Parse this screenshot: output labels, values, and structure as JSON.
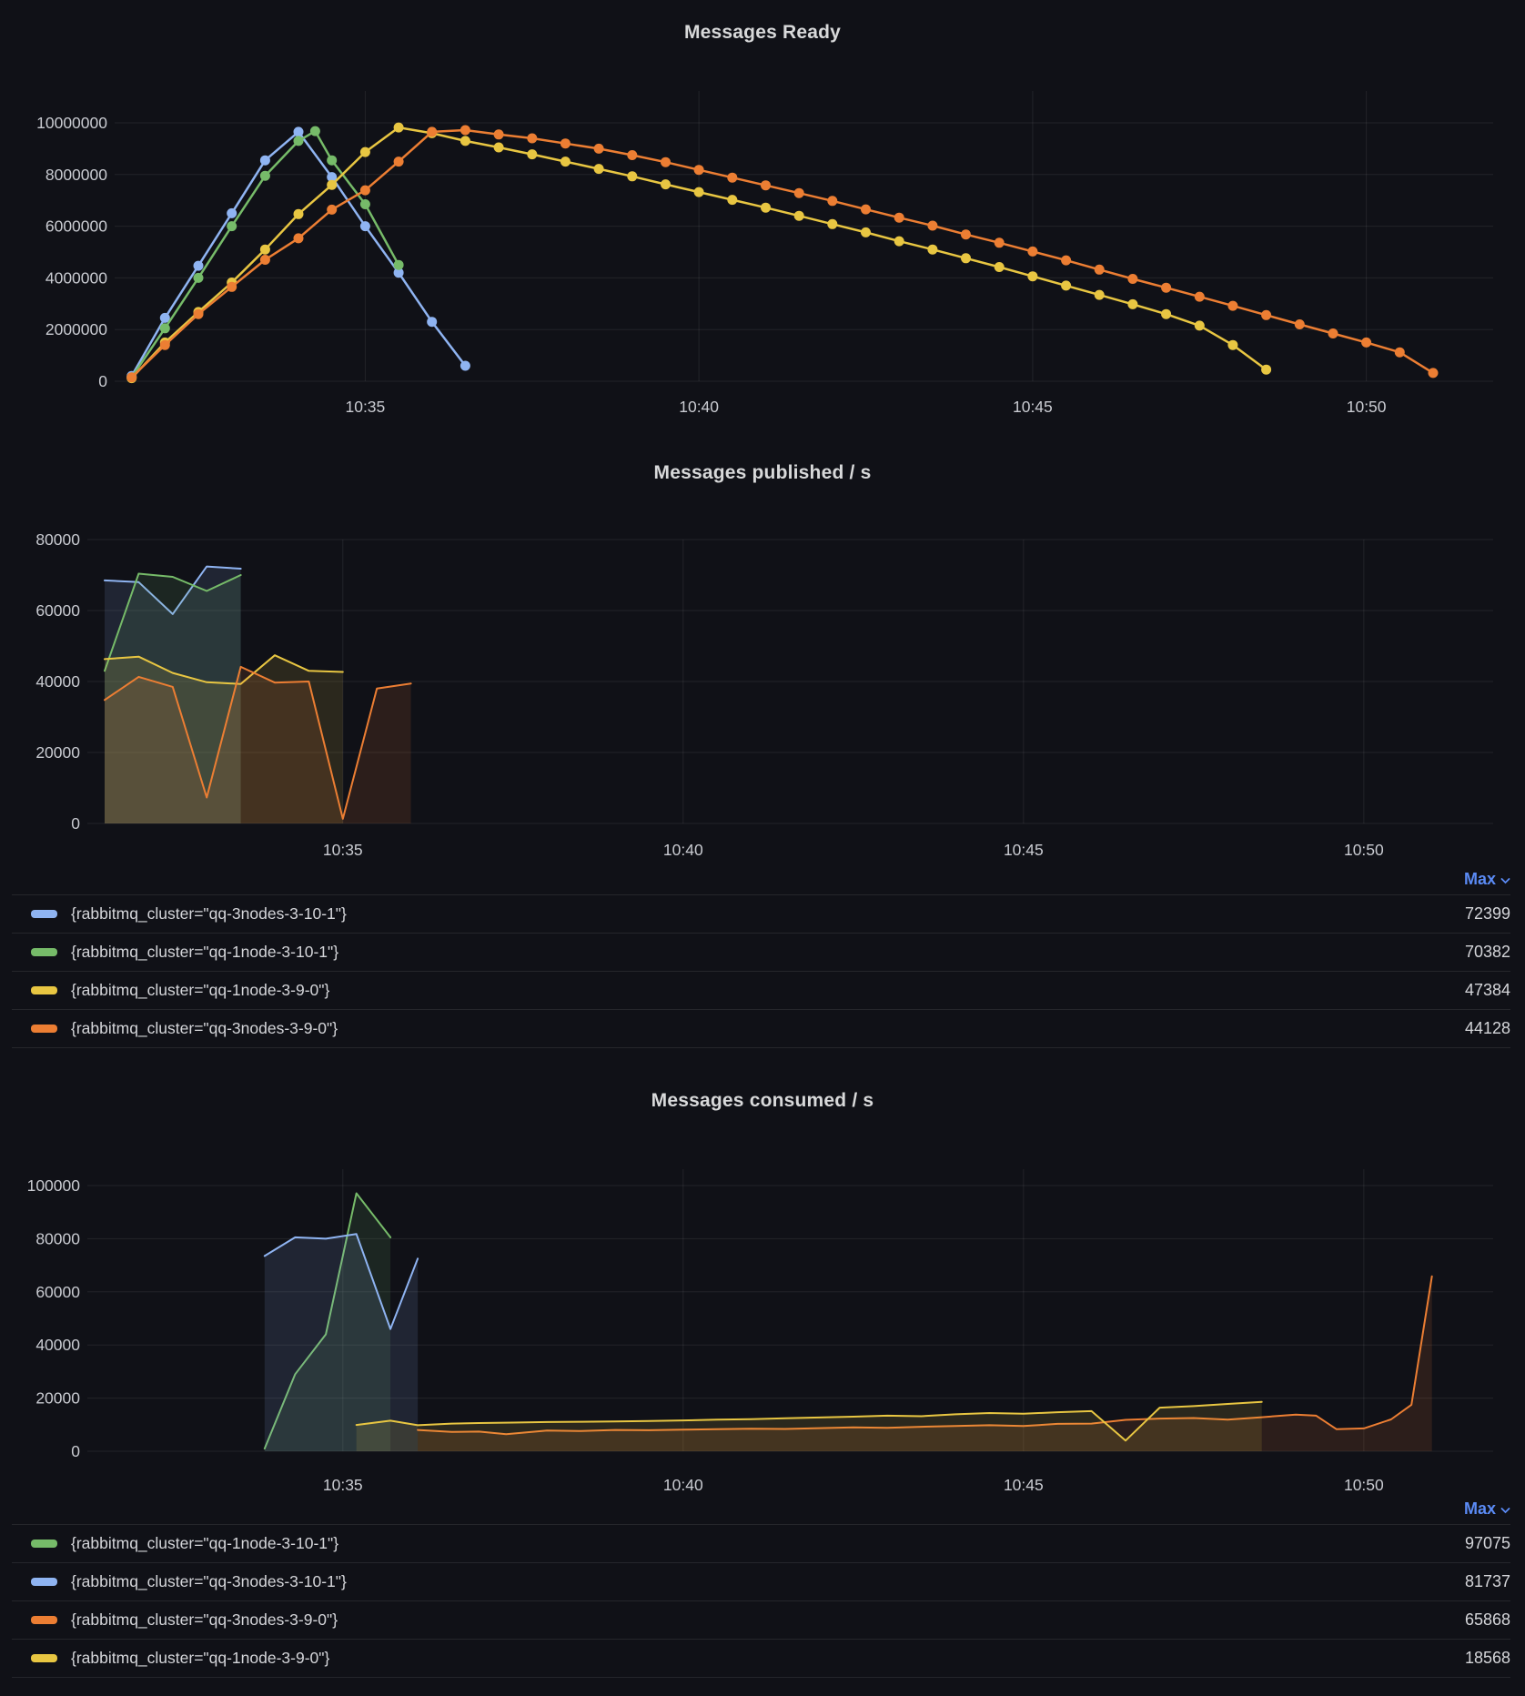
{
  "colors": {
    "blue": "#8FB4F2",
    "green": "#76BB69",
    "yellow": "#E8C642",
    "orange": "#EC7E33"
  },
  "legends": {
    "published": {
      "sort_label": "Max",
      "rows": [
        {
          "color": "blue",
          "label": "{rabbitmq_cluster=\"qq-3nodes-3-10-1\"}",
          "max": "72399"
        },
        {
          "color": "green",
          "label": "{rabbitmq_cluster=\"qq-1node-3-10-1\"}",
          "max": "70382"
        },
        {
          "color": "yellow",
          "label": "{rabbitmq_cluster=\"qq-1node-3-9-0\"}",
          "max": "47384"
        },
        {
          "color": "orange",
          "label": "{rabbitmq_cluster=\"qq-3nodes-3-9-0\"}",
          "max": "44128"
        }
      ]
    },
    "consumed": {
      "sort_label": "Max",
      "rows": [
        {
          "color": "green",
          "label": "{rabbitmq_cluster=\"qq-1node-3-10-1\"}",
          "max": "97075"
        },
        {
          "color": "blue",
          "label": "{rabbitmq_cluster=\"qq-3nodes-3-10-1\"}",
          "max": "81737"
        },
        {
          "color": "orange",
          "label": "{rabbitmq_cluster=\"qq-3nodes-3-9-0\"}",
          "max": "65868"
        },
        {
          "color": "yellow",
          "label": "{rabbitmq_cluster=\"qq-1node-3-9-0\"}",
          "max": "18568"
        }
      ]
    }
  },
  "chart_data": [
    {
      "type": "line",
      "title": "Messages Ready",
      "grid": true,
      "legend_position": "none",
      "marker": "circle",
      "x_axis": {
        "unit": "time (minutes after 10:30)",
        "tick_minutes": [
          5,
          10,
          15,
          20
        ],
        "tick_labels": [
          "10:35",
          "10:40",
          "10:45",
          "10:50"
        ],
        "domain_minutes": [
          1.3,
          21.9
        ]
      },
      "ylim": [
        0,
        10000000
      ],
      "yticks": [
        0,
        2000000,
        4000000,
        6000000,
        8000000,
        10000000
      ],
      "series": [
        {
          "name": "{rabbitmq_cluster=\"qq-3nodes-3-10-1\"}",
          "color": "blue",
          "values": [
            [
              1.5,
              200000
            ],
            [
              2,
              2450000
            ],
            [
              2.5,
              4470000
            ],
            [
              3,
              6500000
            ],
            [
              3.5,
              8550000
            ],
            [
              4,
              9650000
            ],
            [
              4.5,
              7900000
            ],
            [
              5,
              6000000
            ],
            [
              5.5,
              4200000
            ],
            [
              6,
              2300000
            ],
            [
              6.5,
              600000
            ]
          ]
        },
        {
          "name": "{rabbitmq_cluster=\"qq-1node-3-10-1\"}",
          "color": "green",
          "values": [
            [
              1.5,
              150000
            ],
            [
              2,
              2050000
            ],
            [
              2.5,
              4000000
            ],
            [
              3,
              6000000
            ],
            [
              3.5,
              7950000
            ],
            [
              4,
              9300000
            ],
            [
              4.25,
              9680000
            ],
            [
              4.5,
              8550000
            ],
            [
              5,
              6850000
            ],
            [
              5.5,
              4500000
            ]
          ]
        },
        {
          "name": "{rabbitmq_cluster=\"qq-1node-3-9-0\"}",
          "color": "yellow",
          "values": [
            [
              1.5,
              120000
            ],
            [
              2,
              1500000
            ],
            [
              2.5,
              2680000
            ],
            [
              3,
              3820000
            ],
            [
              3.5,
              5100000
            ],
            [
              4,
              6470000
            ],
            [
              4.5,
              7600000
            ],
            [
              5,
              8870000
            ],
            [
              5.5,
              9820000
            ],
            [
              6,
              9600000
            ],
            [
              6.5,
              9300000
            ],
            [
              7,
              9050000
            ],
            [
              7.5,
              8780000
            ],
            [
              8,
              8500000
            ],
            [
              8.5,
              8220000
            ],
            [
              9,
              7930000
            ],
            [
              9.5,
              7620000
            ],
            [
              10,
              7320000
            ],
            [
              10.5,
              7020000
            ],
            [
              11,
              6720000
            ],
            [
              11.5,
              6400000
            ],
            [
              12,
              6080000
            ],
            [
              12.5,
              5760000
            ],
            [
              13,
              5420000
            ],
            [
              13.5,
              5100000
            ],
            [
              14,
              4760000
            ],
            [
              14.5,
              4420000
            ],
            [
              15,
              4060000
            ],
            [
              15.5,
              3700000
            ],
            [
              16,
              3340000
            ],
            [
              16.5,
              2980000
            ],
            [
              17,
              2600000
            ],
            [
              17.5,
              2150000
            ],
            [
              18,
              1400000
            ],
            [
              18.5,
              450000
            ]
          ]
        },
        {
          "name": "{rabbitmq_cluster=\"qq-3nodes-3-9-0\"}",
          "color": "orange",
          "values": [
            [
              1.5,
              150000
            ],
            [
              2,
              1400000
            ],
            [
              2.5,
              2600000
            ],
            [
              3,
              3650000
            ],
            [
              3.5,
              4700000
            ],
            [
              4,
              5530000
            ],
            [
              4.5,
              6640000
            ],
            [
              5,
              7390000
            ],
            [
              5.5,
              8500000
            ],
            [
              6,
              9650000
            ],
            [
              6.5,
              9720000
            ],
            [
              7,
              9550000
            ],
            [
              7.5,
              9400000
            ],
            [
              8,
              9200000
            ],
            [
              8.5,
              9000000
            ],
            [
              9,
              8750000
            ],
            [
              9.5,
              8480000
            ],
            [
              10,
              8180000
            ],
            [
              10.5,
              7880000
            ],
            [
              11,
              7580000
            ],
            [
              11.5,
              7280000
            ],
            [
              12,
              6980000
            ],
            [
              12.5,
              6650000
            ],
            [
              13,
              6330000
            ],
            [
              13.5,
              6020000
            ],
            [
              14,
              5680000
            ],
            [
              14.5,
              5360000
            ],
            [
              15,
              5020000
            ],
            [
              15.5,
              4680000
            ],
            [
              16,
              4320000
            ],
            [
              16.5,
              3960000
            ],
            [
              17,
              3620000
            ],
            [
              17.5,
              3270000
            ],
            [
              18,
              2920000
            ],
            [
              18.5,
              2560000
            ],
            [
              19,
              2200000
            ],
            [
              19.5,
              1850000
            ],
            [
              20,
              1500000
            ],
            [
              20.5,
              1120000
            ],
            [
              21,
              320000
            ]
          ]
        }
      ]
    },
    {
      "type": "area",
      "title": "Messages published / s",
      "grid": true,
      "legend_position": "bottom-table",
      "x_axis": {
        "unit": "time (minutes after 10:30)",
        "tick_minutes": [
          5,
          10,
          15,
          20
        ],
        "tick_labels": [
          "10:35",
          "10:40",
          "10:45",
          "10:50"
        ],
        "domain_minutes": [
          1.3,
          21.9
        ]
      },
      "ylim": [
        0,
        80000
      ],
      "yticks": [
        0,
        20000,
        40000,
        60000,
        80000
      ],
      "series": [
        {
          "name": "{rabbitmq_cluster=\"qq-3nodes-3-10-1\"}",
          "color": "blue",
          "values": [
            [
              1.5,
              68500
            ],
            [
              2,
              68000
            ],
            [
              2.5,
              59000
            ],
            [
              3,
              72399
            ],
            [
              3.5,
              71800
            ]
          ]
        },
        {
          "name": "{rabbitmq_cluster=\"qq-1node-3-10-1\"}",
          "color": "green",
          "values": [
            [
              1.5,
              43000
            ],
            [
              2,
              70382
            ],
            [
              2.5,
              69500
            ],
            [
              3,
              65500
            ],
            [
              3.5,
              70000
            ]
          ]
        },
        {
          "name": "{rabbitmq_cluster=\"qq-1node-3-9-0\"}",
          "color": "yellow",
          "values": [
            [
              1.5,
              46300
            ],
            [
              2,
              47000
            ],
            [
              2.5,
              42400
            ],
            [
              3,
              39800
            ],
            [
              3.5,
              39300
            ],
            [
              4,
              47384
            ],
            [
              4.5,
              43000
            ],
            [
              5,
              42700
            ]
          ]
        },
        {
          "name": "{rabbitmq_cluster=\"qq-3nodes-3-9-0\"}",
          "color": "orange",
          "values": [
            [
              1.5,
              34800
            ],
            [
              2,
              41300
            ],
            [
              2.5,
              38500
            ],
            [
              3,
              7300
            ],
            [
              3.5,
              44128
            ],
            [
              4,
              39700
            ],
            [
              4.5,
              40000
            ],
            [
              5,
              1300
            ],
            [
              5.5,
              38000
            ],
            [
              6,
              39400
            ]
          ]
        }
      ]
    },
    {
      "type": "area",
      "title": "Messages consumed / s",
      "grid": true,
      "legend_position": "bottom-table",
      "x_axis": {
        "unit": "time (minutes after 10:30)",
        "tick_minutes": [
          5,
          10,
          15,
          20
        ],
        "tick_labels": [
          "10:35",
          "10:40",
          "10:45",
          "10:50"
        ],
        "domain_minutes": [
          1.3,
          21.9
        ]
      },
      "ylim": [
        0,
        100000
      ],
      "yticks": [
        0,
        20000,
        40000,
        60000,
        80000,
        100000
      ],
      "series": [
        {
          "name": "{rabbitmq_cluster=\"qq-1node-3-10-1\"}",
          "color": "green",
          "values": [
            [
              3.85,
              1000
            ],
            [
              4.3,
              29000
            ],
            [
              4.75,
              44000
            ],
            [
              5.2,
              97075
            ],
            [
              5.7,
              80500
            ]
          ]
        },
        {
          "name": "{rabbitmq_cluster=\"qq-3nodes-3-10-1\"}",
          "color": "blue",
          "values": [
            [
              3.85,
              73500
            ],
            [
              4.3,
              80500
            ],
            [
              4.75,
              80000
            ],
            [
              5.2,
              81737
            ],
            [
              5.7,
              46000
            ],
            [
              6.1,
              72500
            ]
          ]
        },
        {
          "name": "{rabbitmq_cluster=\"qq-3nodes-3-9-0\"}",
          "color": "orange",
          "values": [
            [
              6.1,
              8000
            ],
            [
              6.6,
              7300
            ],
            [
              7,
              7400
            ],
            [
              7.4,
              6400
            ],
            [
              8,
              7800
            ],
            [
              8.5,
              7600
            ],
            [
              9,
              8000
            ],
            [
              9.5,
              7900
            ],
            [
              10,
              8100
            ],
            [
              10.5,
              8300
            ],
            [
              11,
              8500
            ],
            [
              11.5,
              8400
            ],
            [
              12,
              8700
            ],
            [
              12.5,
              9000
            ],
            [
              13,
              8800
            ],
            [
              13.5,
              9200
            ],
            [
              14,
              9500
            ],
            [
              14.5,
              9800
            ],
            [
              15,
              9500
            ],
            [
              15.5,
              10300
            ],
            [
              16,
              10400
            ],
            [
              16.5,
              11800
            ],
            [
              17,
              12300
            ],
            [
              17.5,
              12500
            ],
            [
              18,
              11900
            ],
            [
              18.5,
              12800
            ],
            [
              19,
              13800
            ],
            [
              19.3,
              13400
            ],
            [
              19.6,
              8300
            ],
            [
              20,
              8600
            ],
            [
              20.4,
              12000
            ],
            [
              20.7,
              17500
            ],
            [
              21,
              65868
            ]
          ]
        },
        {
          "name": "{rabbitmq_cluster=\"qq-1node-3-9-0\"}",
          "color": "yellow",
          "values": [
            [
              5.2,
              9900
            ],
            [
              5.7,
              11500
            ],
            [
              6.1,
              9800
            ],
            [
              6.6,
              10400
            ],
            [
              7,
              10600
            ],
            [
              7.5,
              10800
            ],
            [
              8,
              11000
            ],
            [
              8.5,
              11100
            ],
            [
              9,
              11200
            ],
            [
              9.5,
              11400
            ],
            [
              10,
              11600
            ],
            [
              10.5,
              11900
            ],
            [
              11,
              12100
            ],
            [
              11.5,
              12400
            ],
            [
              12,
              12700
            ],
            [
              12.5,
              13000
            ],
            [
              13,
              13400
            ],
            [
              13.5,
              13200
            ],
            [
              14,
              13900
            ],
            [
              14.5,
              14400
            ],
            [
              15,
              14100
            ],
            [
              15.5,
              14700
            ],
            [
              16,
              15100
            ],
            [
              16.5,
              4000
            ],
            [
              17,
              16400
            ],
            [
              17.5,
              17000
            ],
            [
              18,
              17800
            ],
            [
              18.5,
              18568
            ]
          ]
        }
      ]
    }
  ]
}
